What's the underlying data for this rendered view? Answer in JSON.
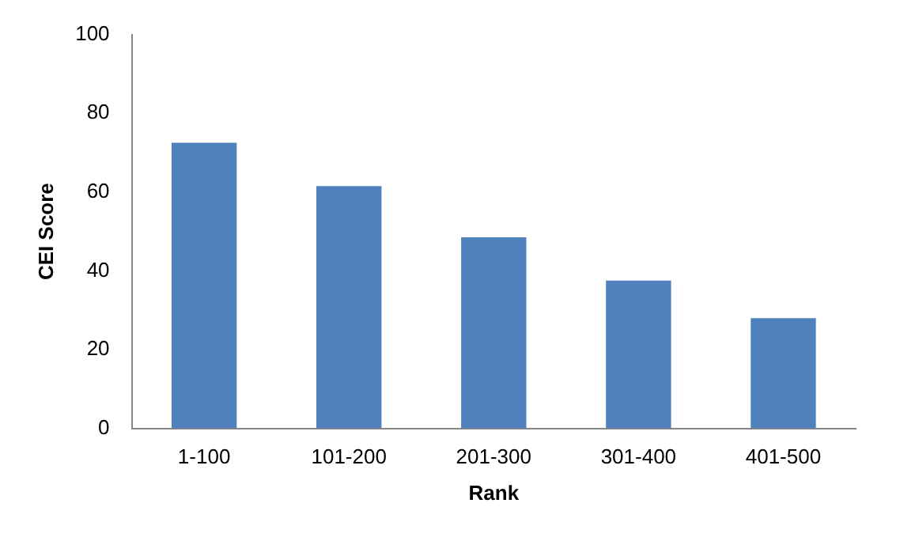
{
  "chart_data": {
    "type": "bar",
    "xlabel": "Rank",
    "ylabel": "CEI Score",
    "categories": [
      "1-100",
      "101-200",
      "201-300",
      "301-400",
      "401-500"
    ],
    "values": [
      72.5,
      61.5,
      48.5,
      37.5,
      28
    ],
    "color": "#4f81bd",
    "ylim": [
      0,
      100
    ],
    "yticks": [
      0,
      20,
      40,
      60,
      80,
      100
    ],
    "grid": false,
    "legend": false
  }
}
